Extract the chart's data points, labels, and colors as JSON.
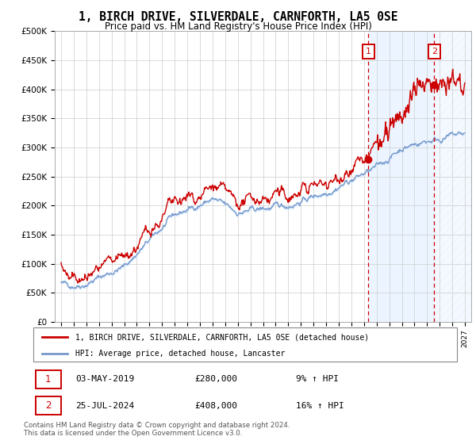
{
  "title": "1, BIRCH DRIVE, SILVERDALE, CARNFORTH, LA5 0SE",
  "subtitle": "Price paid vs. HM Land Registry's House Price Index (HPI)",
  "ylim": [
    0,
    500000
  ],
  "yticks": [
    0,
    50000,
    100000,
    150000,
    200000,
    250000,
    300000,
    350000,
    400000,
    450000,
    500000
  ],
  "ytick_labels": [
    "£0",
    "£50K",
    "£100K",
    "£150K",
    "£200K",
    "£250K",
    "£300K",
    "£350K",
    "£400K",
    "£450K",
    "£500K"
  ],
  "red_color": "#cc0000",
  "blue_color": "#7799cc",
  "blue_fill_color": "#ddeeff",
  "marker1_date_x": 2019.35,
  "marker1_price": 280000,
  "marker1_date_str": "03-MAY-2019",
  "marker1_pct": "9% ↑ HPI",
  "marker2_date_x": 2024.56,
  "marker2_price": 408000,
  "marker2_date_str": "25-JUL-2024",
  "marker2_pct": "16% ↑ HPI",
  "legend_line1": "1, BIRCH DRIVE, SILVERDALE, CARNFORTH, LA5 0SE (detached house)",
  "legend_line2": "HPI: Average price, detached house, Lancaster",
  "footer": "Contains HM Land Registry data © Crown copyright and database right 2024.\nThis data is licensed under the Open Government Licence v3.0.",
  "xtick_years": [
    1995,
    1996,
    1997,
    1998,
    1999,
    2000,
    2001,
    2002,
    2003,
    2004,
    2005,
    2006,
    2007,
    2008,
    2009,
    2010,
    2011,
    2012,
    2013,
    2014,
    2015,
    2016,
    2017,
    2018,
    2019,
    2020,
    2021,
    2022,
    2023,
    2024,
    2025,
    2026,
    2027
  ],
  "background_color": "#ffffff",
  "grid_color": "#cccccc",
  "shade_start": 2019.35,
  "shade_end": 2024.56,
  "hatch_start": 2024.56,
  "hatch_end": 2027.5,
  "xlim_left": 1994.5,
  "xlim_right": 2027.5
}
